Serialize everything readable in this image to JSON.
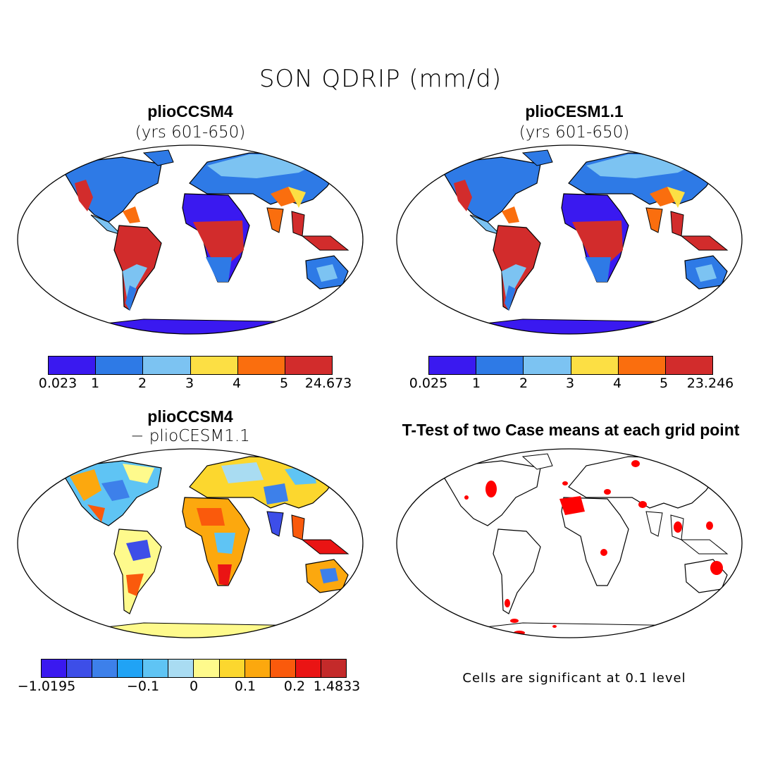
{
  "figure": {
    "title": "SON QDRIP (mm/d)",
    "variable": "QDRIP",
    "season": "SON",
    "units": "mm/d"
  },
  "panels": [
    {
      "title": "plioCCSM4",
      "subtitle": "(yrs 601-650)",
      "colorbar": {
        "colors": [
          "#3a19f0",
          "#2e7ae6",
          "#7cc3f2",
          "#fcdf44",
          "#fa6e0e",
          "#d22c2c"
        ],
        "labels": [
          "0.023",
          "1",
          "2",
          "3",
          "4",
          "5",
          "24.673"
        ]
      }
    },
    {
      "title": "plioCESM1.1",
      "subtitle": "(yrs 601-650)",
      "colorbar": {
        "colors": [
          "#3a19f0",
          "#2e7ae6",
          "#7cc3f2",
          "#fcdf44",
          "#fa6e0e",
          "#d22c2c"
        ],
        "labels": [
          "0.025",
          "1",
          "2",
          "3",
          "4",
          "5",
          "23.246"
        ]
      }
    },
    {
      "title": "plioCCSM4",
      "subtitle": "− plioCESM1.1",
      "colorbar": {
        "colors": [
          "#3a19f0",
          "#3d4ee8",
          "#3d80ea",
          "#20a3f5",
          "#5fc4f4",
          "#a9dcf2",
          "#fefa8c",
          "#fcd72e",
          "#fca80e",
          "#fa5a0c",
          "#ea1414",
          "#c42a2a"
        ],
        "labels": [
          "−1.0195",
          "−0.1",
          "0",
          "0.1",
          "0.2",
          "1.4833"
        ]
      }
    },
    {
      "title": "T-Test of two Case means at each grid point",
      "note": "Cells are significant at 0.1 level",
      "significance_color": "#ff0000"
    }
  ]
}
